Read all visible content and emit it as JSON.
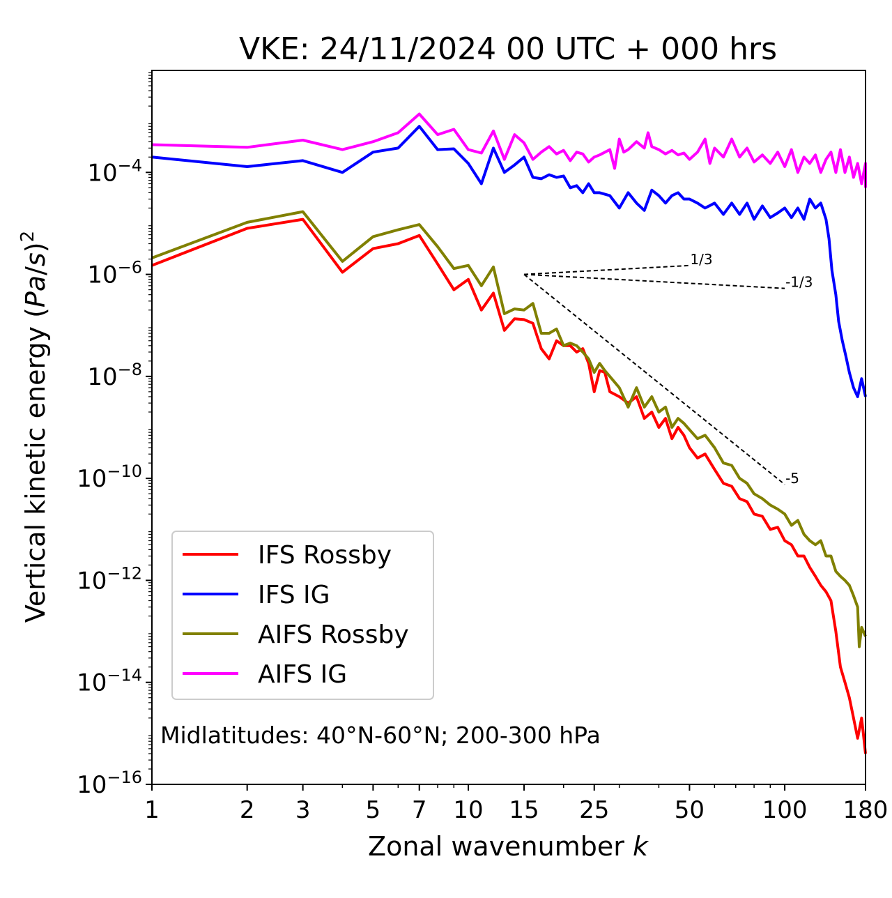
{
  "chart_data": {
    "type": "line",
    "title": "VKE: 24/11/2024 00 UTC + 000 hrs",
    "xlabel": "Zonal wavenumber k",
    "ylabel": "Vertical kinetic energy (Pa/s)^2",
    "xscale": "log",
    "yscale": "log",
    "xlim": [
      1,
      180
    ],
    "ylim": [
      1e-16,
      0.01
    ],
    "xticks": [
      1,
      2,
      3,
      5,
      7,
      10,
      15,
      25,
      50,
      100,
      180
    ],
    "xtick_labels": [
      "1",
      "2",
      "3",
      "5",
      "7",
      "10",
      "15",
      "25",
      "50",
      "100",
      "180"
    ],
    "yticks": [
      1e-16,
      1e-14,
      1e-12,
      1e-10,
      1e-08,
      1e-06,
      0.0001
    ],
    "ytick_labels": [
      {
        "base": "10",
        "exp": "−16"
      },
      {
        "base": "10",
        "exp": "−14"
      },
      {
        "base": "10",
        "exp": "−12"
      },
      {
        "base": "10",
        "exp": "−10"
      },
      {
        "base": "10",
        "exp": "−8"
      },
      {
        "base": "10",
        "exp": "−6"
      },
      {
        "base": "10",
        "exp": "−4"
      }
    ],
    "grid": false,
    "legend_position": "lower-left",
    "annotation": "Midlatitudes: 40°N-60°N; 200-300 hPa",
    "series": [
      {
        "name": "IFS Rossby",
        "color": "#ff0000",
        "points": [
          [
            1,
            1.5e-06
          ],
          [
            2,
            8e-06
          ],
          [
            3,
            1.2e-05
          ],
          [
            4,
            1.1e-06
          ],
          [
            5,
            3.2e-06
          ],
          [
            6,
            4e-06
          ],
          [
            7,
            5.8e-06
          ],
          [
            8,
            1.6e-06
          ],
          [
            9,
            5e-07
          ],
          [
            10,
            8e-07
          ],
          [
            11,
            2e-07
          ],
          [
            12,
            4.3e-07
          ],
          [
            13,
            8e-08
          ],
          [
            14,
            1.35e-07
          ],
          [
            15,
            1.3e-07
          ],
          [
            16,
            1.1e-07
          ],
          [
            17,
            3.5e-08
          ],
          [
            18,
            2.2e-08
          ],
          [
            19,
            5e-08
          ],
          [
            20,
            4e-08
          ],
          [
            21,
            4e-08
          ],
          [
            22,
            3e-08
          ],
          [
            23,
            3.5e-08
          ],
          [
            24,
            1.8e-08
          ],
          [
            25,
            5e-09
          ],
          [
            26,
            1.3e-08
          ],
          [
            27,
            1.2e-08
          ],
          [
            28,
            5e-09
          ],
          [
            30,
            4e-09
          ],
          [
            32,
            3e-09
          ],
          [
            34,
            4e-09
          ],
          [
            36,
            1.5e-09
          ],
          [
            38,
            2e-09
          ],
          [
            40,
            1e-09
          ],
          [
            42,
            1.5e-09
          ],
          [
            44,
            6e-10
          ],
          [
            46,
            1e-09
          ],
          [
            48,
            7e-10
          ],
          [
            50,
            4e-10
          ],
          [
            53,
            2.5e-10
          ],
          [
            56,
            3e-10
          ],
          [
            60,
            1.5e-10
          ],
          [
            64,
            8e-11
          ],
          [
            68,
            7e-11
          ],
          [
            72,
            4e-11
          ],
          [
            76,
            3.5e-11
          ],
          [
            80,
            2e-11
          ],
          [
            85,
            1.8e-11
          ],
          [
            90,
            1e-11
          ],
          [
            95,
            1.1e-11
          ],
          [
            100,
            6e-12
          ],
          [
            105,
            5e-12
          ],
          [
            110,
            3e-12
          ],
          [
            115,
            3e-12
          ],
          [
            120,
            1.8e-12
          ],
          [
            125,
            1.2e-12
          ],
          [
            130,
            8e-13
          ],
          [
            135,
            6e-13
          ],
          [
            140,
            4e-13
          ],
          [
            145,
            1e-13
          ],
          [
            150,
            2e-14
          ],
          [
            155,
            1e-14
          ],
          [
            160,
            5e-15
          ],
          [
            165,
            2e-15
          ],
          [
            170,
            8e-16
          ],
          [
            175,
            2e-15
          ],
          [
            180,
            4e-16
          ]
        ]
      },
      {
        "name": "IFS IG",
        "color": "#0000ff",
        "points": [
          [
            1,
            0.0002
          ],
          [
            2,
            0.00013
          ],
          [
            3,
            0.00017
          ],
          [
            4,
            0.0001
          ],
          [
            5,
            0.00025
          ],
          [
            6,
            0.0003
          ],
          [
            7,
            0.0008
          ],
          [
            8,
            0.00028
          ],
          [
            9,
            0.00029
          ],
          [
            10,
            0.00015
          ],
          [
            11,
            6e-05
          ],
          [
            12,
            0.0003
          ],
          [
            13,
            0.0001
          ],
          [
            14,
            0.00014
          ],
          [
            15,
            0.0002
          ],
          [
            16,
            8e-05
          ],
          [
            17,
            7.5e-05
          ],
          [
            18,
            9e-05
          ],
          [
            19,
            8e-05
          ],
          [
            20,
            8.5e-05
          ],
          [
            21,
            5e-05
          ],
          [
            22,
            5.5e-05
          ],
          [
            23,
            4e-05
          ],
          [
            24,
            6e-05
          ],
          [
            25,
            4e-05
          ],
          [
            26,
            4e-05
          ],
          [
            28,
            3.5e-05
          ],
          [
            30,
            2e-05
          ],
          [
            32,
            4e-05
          ],
          [
            34,
            2.5e-05
          ],
          [
            36,
            1.8e-05
          ],
          [
            38,
            4.5e-05
          ],
          [
            40,
            3.5e-05
          ],
          [
            42,
            2.5e-05
          ],
          [
            44,
            3.5e-05
          ],
          [
            46,
            4e-05
          ],
          [
            48,
            3e-05
          ],
          [
            50,
            3e-05
          ],
          [
            53,
            2.5e-05
          ],
          [
            56,
            2e-05
          ],
          [
            60,
            2.5e-05
          ],
          [
            64,
            1.5e-05
          ],
          [
            68,
            2.5e-05
          ],
          [
            72,
            1.5e-05
          ],
          [
            76,
            2.5e-05
          ],
          [
            80,
            1.2e-05
          ],
          [
            85,
            2.2e-05
          ],
          [
            90,
            1.3e-05
          ],
          [
            95,
            1.6e-05
          ],
          [
            100,
            2e-05
          ],
          [
            105,
            1.3e-05
          ],
          [
            110,
            2e-05
          ],
          [
            115,
            1.2e-05
          ],
          [
            120,
            3e-05
          ],
          [
            125,
            2e-05
          ],
          [
            130,
            2.5e-05
          ],
          [
            135,
            1.2e-05
          ],
          [
            138,
            5e-06
          ],
          [
            141,
            1.2e-06
          ],
          [
            145,
            4e-07
          ],
          [
            148,
            1.2e-07
          ],
          [
            152,
            5e-08
          ],
          [
            156,
            2.5e-08
          ],
          [
            160,
            1.2e-08
          ],
          [
            165,
            6e-09
          ],
          [
            170,
            4e-09
          ],
          [
            175,
            9e-09
          ],
          [
            180,
            4e-09
          ]
        ]
      },
      {
        "name": "AIFS Rossby",
        "color": "#808000",
        "points": [
          [
            1,
            2.1e-06
          ],
          [
            2,
            1.05e-05
          ],
          [
            3,
            1.7e-05
          ],
          [
            4,
            1.8e-06
          ],
          [
            5,
            5.5e-06
          ],
          [
            6,
            7.5e-06
          ],
          [
            7,
            9.5e-06
          ],
          [
            8,
            3.5e-06
          ],
          [
            9,
            1.3e-06
          ],
          [
            10,
            1.5e-06
          ],
          [
            11,
            6e-07
          ],
          [
            12,
            1.4e-06
          ],
          [
            13,
            1.7e-07
          ],
          [
            14,
            2.1e-07
          ],
          [
            15,
            2e-07
          ],
          [
            16,
            2.7e-07
          ],
          [
            17,
            7e-08
          ],
          [
            18,
            7e-08
          ],
          [
            19,
            8.5e-08
          ],
          [
            20,
            4e-08
          ],
          [
            21,
            4.5e-08
          ],
          [
            22,
            4e-08
          ],
          [
            23,
            3e-08
          ],
          [
            24,
            2.2e-08
          ],
          [
            25,
            1.2e-08
          ],
          [
            26,
            1.8e-08
          ],
          [
            27,
            1.3e-08
          ],
          [
            28,
            1e-08
          ],
          [
            30,
            6e-09
          ],
          [
            32,
            2.5e-09
          ],
          [
            34,
            6e-09
          ],
          [
            36,
            2.5e-09
          ],
          [
            38,
            4e-09
          ],
          [
            40,
            2e-09
          ],
          [
            42,
            2.5e-09
          ],
          [
            44,
            1e-09
          ],
          [
            46,
            1.5e-09
          ],
          [
            48,
            1.2e-09
          ],
          [
            50,
            9e-10
          ],
          [
            53,
            6e-10
          ],
          [
            56,
            7e-10
          ],
          [
            60,
            4e-10
          ],
          [
            64,
            2e-10
          ],
          [
            68,
            1.8e-10
          ],
          [
            72,
            1e-10
          ],
          [
            76,
            8e-11
          ],
          [
            80,
            5e-11
          ],
          [
            85,
            4e-11
          ],
          [
            90,
            3e-11
          ],
          [
            95,
            2.5e-11
          ],
          [
            100,
            2e-11
          ],
          [
            105,
            1.2e-11
          ],
          [
            110,
            1.5e-11
          ],
          [
            115,
            8e-12
          ],
          [
            120,
            6e-12
          ],
          [
            125,
            5e-12
          ],
          [
            130,
            6e-12
          ],
          [
            135,
            3e-12
          ],
          [
            140,
            3e-12
          ],
          [
            145,
            1.5e-12
          ],
          [
            150,
            1.2e-12
          ],
          [
            155,
            1e-12
          ],
          [
            160,
            8e-13
          ],
          [
            165,
            5e-13
          ],
          [
            170,
            3e-13
          ],
          [
            172,
            5e-14
          ],
          [
            175,
            1.2e-13
          ],
          [
            180,
            8e-14
          ]
        ]
      },
      {
        "name": "AIFS IG",
        "color": "#ff00ff",
        "points": [
          [
            1,
            0.00035
          ],
          [
            2,
            0.00031
          ],
          [
            3,
            0.00043
          ],
          [
            4,
            0.00028
          ],
          [
            5,
            0.0004
          ],
          [
            6,
            0.0006
          ],
          [
            7,
            0.0014
          ],
          [
            8,
            0.00055
          ],
          [
            9,
            0.0007
          ],
          [
            10,
            0.00028
          ],
          [
            11,
            0.00024
          ],
          [
            12,
            0.00065
          ],
          [
            13,
            0.00018
          ],
          [
            14,
            0.00055
          ],
          [
            15,
            0.00038
          ],
          [
            16,
            0.00018
          ],
          [
            17,
            0.00025
          ],
          [
            18,
            0.00032
          ],
          [
            19,
            0.00023
          ],
          [
            20,
            0.00027
          ],
          [
            21,
            0.00017
          ],
          [
            22,
            0.00025
          ],
          [
            23,
            0.00023
          ],
          [
            24,
            0.00016
          ],
          [
            25,
            0.0002
          ],
          [
            26,
            0.00022
          ],
          [
            28,
            0.00028
          ],
          [
            29,
            0.00012
          ],
          [
            30,
            0.00045
          ],
          [
            31,
            0.00025
          ],
          [
            32,
            0.00028
          ],
          [
            34,
            0.0004
          ],
          [
            36,
            0.0003
          ],
          [
            37,
            0.0006
          ],
          [
            38,
            0.00032
          ],
          [
            40,
            0.00028
          ],
          [
            42,
            0.00023
          ],
          [
            44,
            0.00027
          ],
          [
            46,
            0.00022
          ],
          [
            48,
            0.00024
          ],
          [
            50,
            0.00018
          ],
          [
            53,
            0.00025
          ],
          [
            56,
            0.00045
          ],
          [
            58,
            0.00015
          ],
          [
            60,
            0.0003
          ],
          [
            64,
            0.0002
          ],
          [
            68,
            0.00045
          ],
          [
            72,
            0.0002
          ],
          [
            76,
            0.0003
          ],
          [
            80,
            0.00016
          ],
          [
            85,
            0.00022
          ],
          [
            90,
            0.00015
          ],
          [
            95,
            0.00025
          ],
          [
            100,
            0.00013
          ],
          [
            105,
            0.00028
          ],
          [
            110,
            0.0001
          ],
          [
            115,
            0.0002
          ],
          [
            120,
            0.00015
          ],
          [
            125,
            0.00022
          ],
          [
            130,
            0.0001
          ],
          [
            135,
            0.00018
          ],
          [
            140,
            0.00025
          ],
          [
            145,
            0.0001
          ],
          [
            150,
            0.00028
          ],
          [
            155,
            0.0001
          ],
          [
            160,
            0.0002
          ],
          [
            165,
            8e-05
          ],
          [
            170,
            0.00015
          ],
          [
            175,
            6e-05
          ],
          [
            180,
            0.00015
          ],
          [
            180,
            5e-05
          ]
        ]
      }
    ],
    "reference_lines": {
      "anchor": [
        15,
        1e-06
      ],
      "end_k": 100,
      "slopes": [
        {
          "slope": 0.333333,
          "label": "1/3",
          "end_k": 50
        },
        {
          "slope": -0.333333,
          "label": "-1/3",
          "end_k": 100
        },
        {
          "slope": -5,
          "label": "-5",
          "end_k": 100
        }
      ]
    }
  }
}
